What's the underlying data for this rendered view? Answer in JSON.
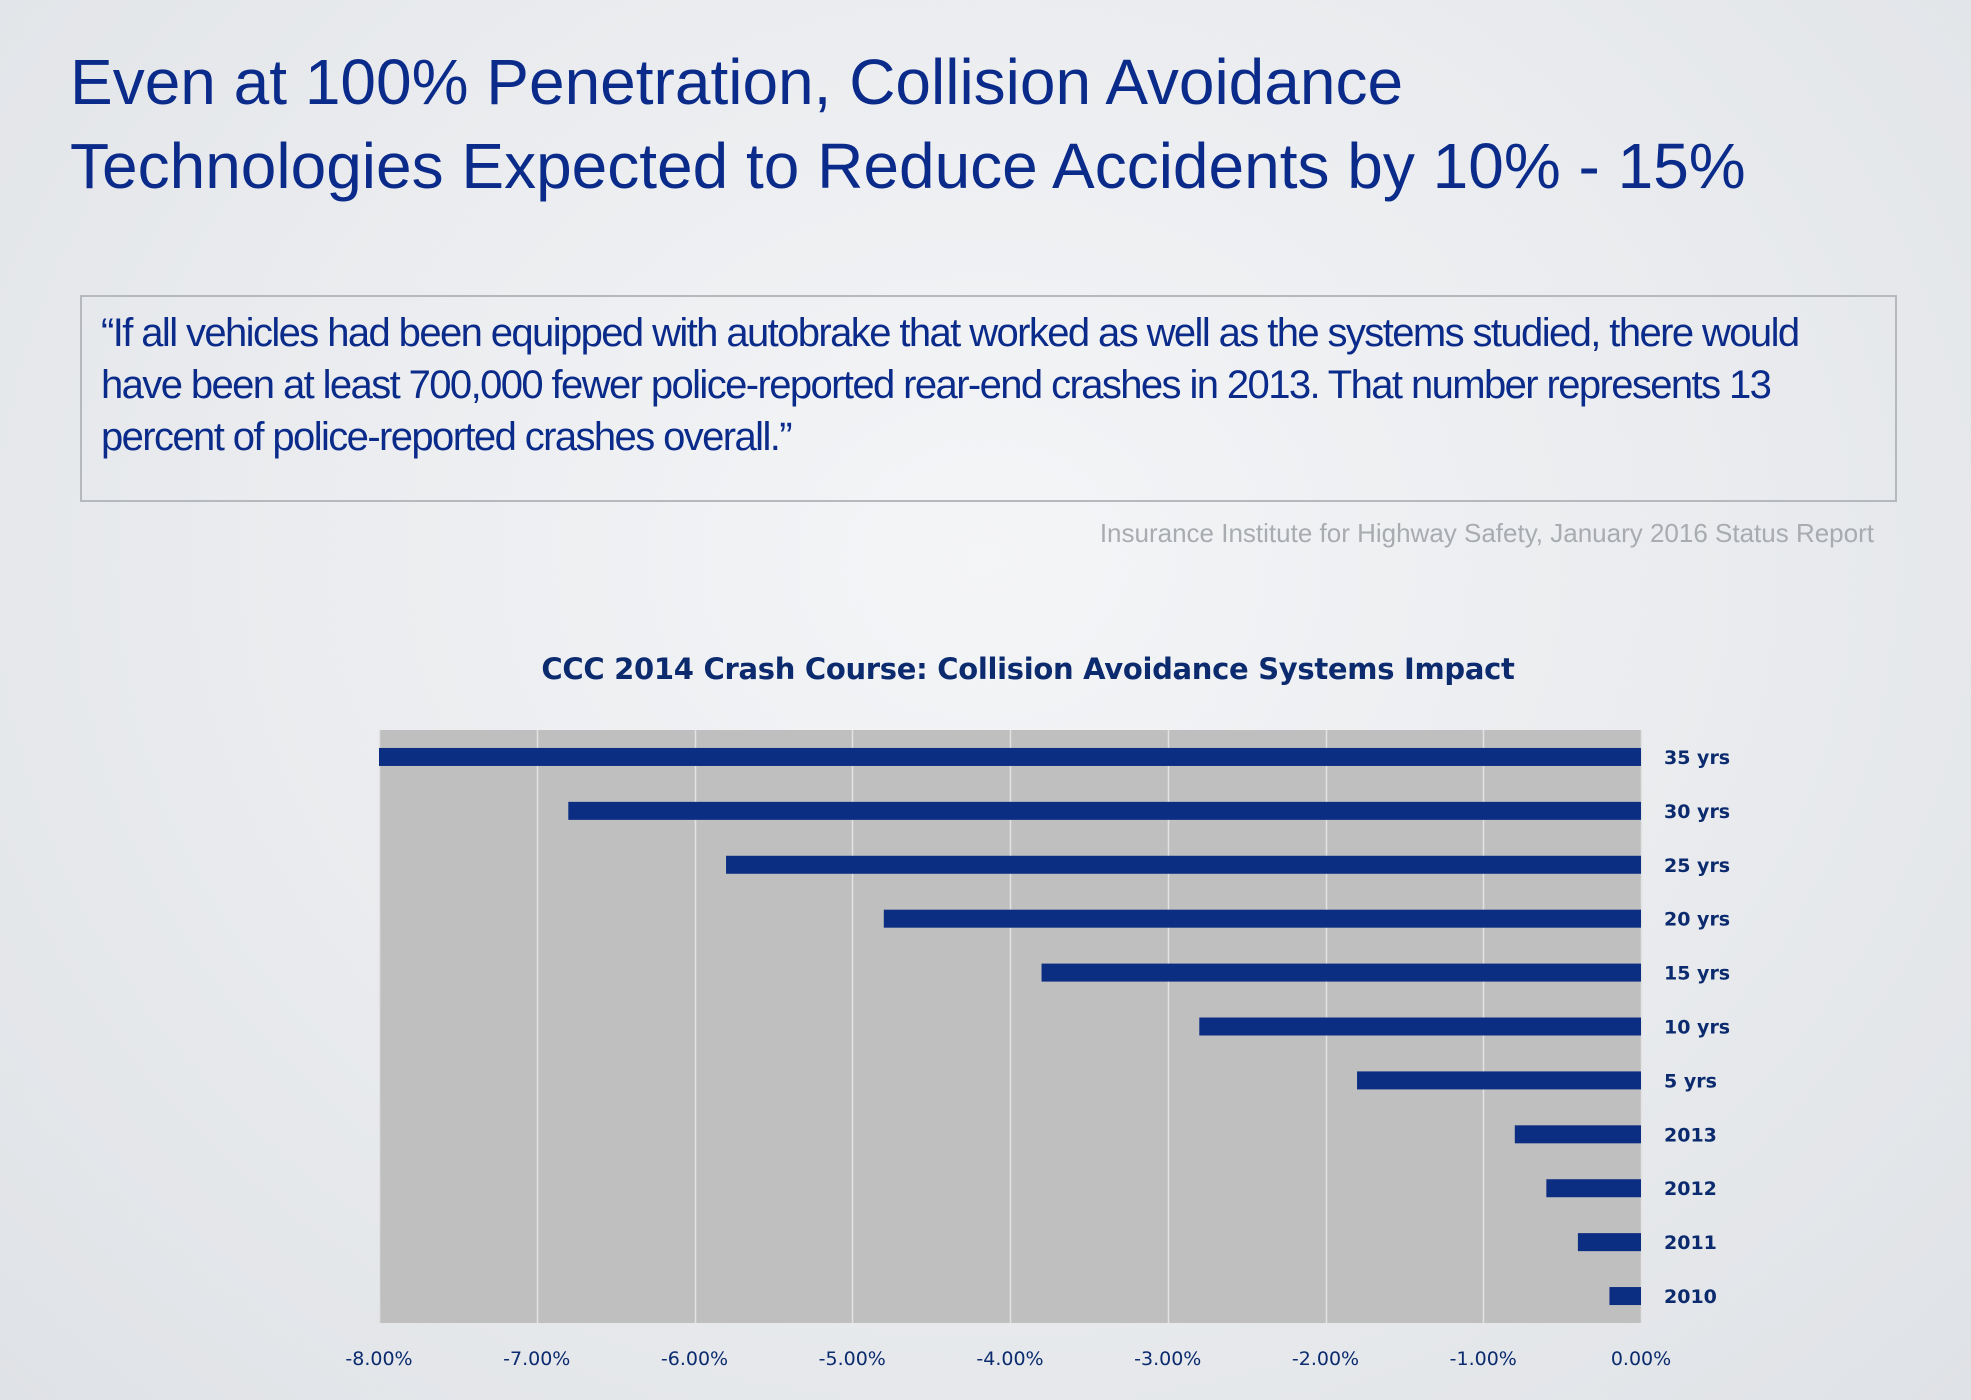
{
  "title": {
    "line1": "Even at 100% Penetration, Collision Avoidance",
    "line2": "Technologies Expected to Reduce Accidents by 10% - 15%"
  },
  "quote": {
    "text": "“If all vehicles had been equipped with autobrake that worked as well as the systems studied, there would have been at least 700,000 fewer police-reported rear-end crashes in 2013. That number represents 13 percent of police-reported crashes overall.”",
    "source": "Insurance Institute for Highway Safety, January 2016 Status Report"
  },
  "colors": {
    "title": "#0b2b8a",
    "bar": "#0b2d82",
    "plot_bg": "#bfbfbf",
    "gridline": "#e2e2e2"
  },
  "chart_data": {
    "type": "bar",
    "orientation": "horizontal",
    "title": "CCC 2014 Crash Course: Collision Avoidance Systems Impact",
    "categories": [
      "35 yrs",
      "30 yrs",
      "25 yrs",
      "20 yrs",
      "15 yrs",
      "10 yrs",
      "5 yrs",
      "2013",
      "2012",
      "2011",
      "2010"
    ],
    "values": [
      -8.0,
      -6.8,
      -5.8,
      -4.8,
      -3.8,
      -2.8,
      -1.8,
      -0.8,
      -0.6,
      -0.4,
      -0.2
    ],
    "unit": "%",
    "xlim": [
      -8.0,
      0.0
    ],
    "xticks": [
      -8,
      -7,
      -6,
      -5,
      -4,
      -3,
      -2,
      -1,
      0
    ],
    "xtick_labels": [
      "-8.00%",
      "-7.00%",
      "-6.00%",
      "-5.00%",
      "-4.00%",
      "-3.00%",
      "-2.00%",
      "-1.00%",
      "0.00%"
    ],
    "grid": true,
    "legend": "none",
    "category_labels_side": "right"
  }
}
